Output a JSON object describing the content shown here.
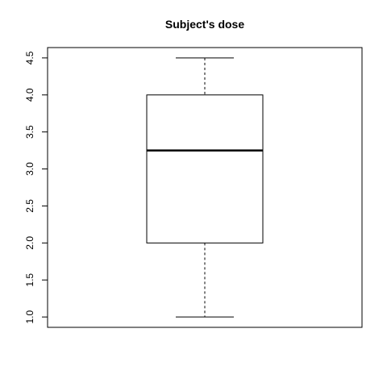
{
  "chart_data": {
    "type": "boxplot",
    "title": "Subject's dose",
    "xlabel": "",
    "ylabel": "",
    "ylim": [
      0.86,
      4.64
    ],
    "yticks": [
      "1.0",
      "1.5",
      "2.0",
      "2.5",
      "3.0",
      "3.5",
      "4.0",
      "4.5"
    ],
    "box": {
      "min": 1.0,
      "q1": 2.0,
      "median": 3.25,
      "q3": 4.0,
      "max": 4.5
    },
    "colors": {
      "box_fill": "#ffffff",
      "stroke": "#000000"
    }
  }
}
